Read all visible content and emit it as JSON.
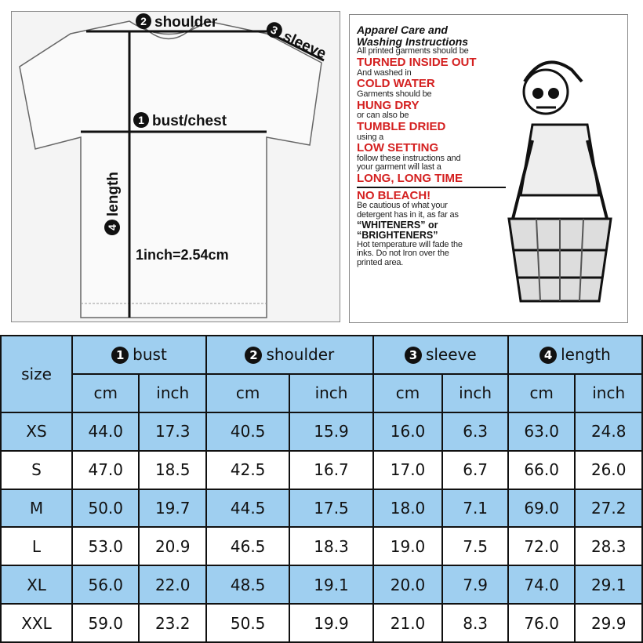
{
  "diagram": {
    "shoulder": {
      "num": "2",
      "label": "shoulder"
    },
    "sleeve": {
      "num": "3",
      "label": "sleeve"
    },
    "bust": {
      "num": "1",
      "label": "bust/chest"
    },
    "length": {
      "num": "4",
      "label": "length"
    },
    "conversion": "1inch=2.54cm"
  },
  "care": {
    "title1": "Apparel Care and",
    "title2": "Washing Instructions",
    "lines": [
      {
        "t": "s",
        "text": "All printed garments should be"
      },
      {
        "t": "r",
        "text": "TURNED INSIDE OUT"
      },
      {
        "t": "s",
        "text": "And washed in"
      },
      {
        "t": "r",
        "text": "COLD WATER"
      },
      {
        "t": "s",
        "text": "Garments should be"
      },
      {
        "t": "r",
        "text": "HUNG DRY"
      },
      {
        "t": "s",
        "text": "or can also be"
      },
      {
        "t": "r",
        "text": "TUMBLE DRIED"
      },
      {
        "t": "s",
        "text": "using a"
      },
      {
        "t": "r",
        "text": "LOW SETTING"
      },
      {
        "t": "s",
        "text": "follow these instructions and"
      },
      {
        "t": "s",
        "text": "your garment will last a"
      },
      {
        "t": "r",
        "text": "LONG, LONG TIME"
      },
      {
        "t": "r",
        "text": "NO BLEACH!"
      },
      {
        "t": "s",
        "text": "Be cautious of what your"
      },
      {
        "t": "s",
        "text": "detergent has in it, as far as"
      },
      {
        "t": "b",
        "text": "“WHITENERS” or"
      },
      {
        "t": "b",
        "text": "“BRIGHTENERS”"
      },
      {
        "t": "s",
        "text": "Hot temperature will fade the"
      },
      {
        "t": "s",
        "text": "inks. Do not Iron over the"
      },
      {
        "t": "s",
        "text": "printed area."
      }
    ]
  },
  "table": {
    "size_header": "size",
    "groups": [
      {
        "num": "1",
        "label": "bust"
      },
      {
        "num": "2",
        "label": "shoulder"
      },
      {
        "num": "3",
        "label": "sleeve"
      },
      {
        "num": "4",
        "label": "length"
      }
    ],
    "units": [
      "cm",
      "inch"
    ],
    "rows": [
      {
        "size": "XS",
        "values": [
          "44.0",
          "17.3",
          "40.5",
          "15.9",
          "16.0",
          "6.3",
          "63.0",
          "24.8"
        ]
      },
      {
        "size": "S",
        "values": [
          "47.0",
          "18.5",
          "42.5",
          "16.7",
          "17.0",
          "6.7",
          "66.0",
          "26.0"
        ]
      },
      {
        "size": "M",
        "values": [
          "50.0",
          "19.7",
          "44.5",
          "17.5",
          "18.0",
          "7.1",
          "69.0",
          "27.2"
        ]
      },
      {
        "size": "L",
        "values": [
          "53.0",
          "20.9",
          "46.5",
          "18.3",
          "19.0",
          "7.5",
          "72.0",
          "28.3"
        ]
      },
      {
        "size": "XL",
        "values": [
          "56.0",
          "22.0",
          "48.5",
          "19.1",
          "20.0",
          "7.9",
          "74.0",
          "29.1"
        ]
      },
      {
        "size": "XXL",
        "values": [
          "59.0",
          "23.2",
          "50.5",
          "19.9",
          "21.0",
          "8.3",
          "76.0",
          "29.9"
        ]
      }
    ]
  },
  "colors": {
    "header_blue": "#9fcff0",
    "care_red": "#d42020"
  }
}
